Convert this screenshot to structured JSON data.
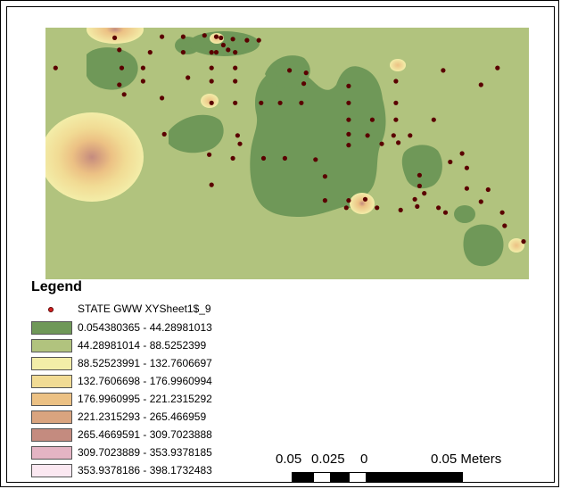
{
  "map": {
    "background_color": "#b1c37e",
    "low_color": "#6f9858",
    "point_color": "#5a0000",
    "points": [
      {
        "x": 0.01,
        "y": 0.145
      },
      {
        "x": 0.135,
        "y": 0.02
      },
      {
        "x": 0.145,
        "y": 0.07
      },
      {
        "x": 0.21,
        "y": 0.08
      },
      {
        "x": 0.235,
        "y": 0.015
      },
      {
        "x": 0.28,
        "y": 0.015
      },
      {
        "x": 0.325,
        "y": 0.01
      },
      {
        "x": 0.35,
        "y": 0.015
      },
      {
        "x": 0.36,
        "y": 0.02
      },
      {
        "x": 0.385,
        "y": 0.025
      },
      {
        "x": 0.415,
        "y": 0.03
      },
      {
        "x": 0.44,
        "y": 0.03
      },
      {
        "x": 0.15,
        "y": 0.145
      },
      {
        "x": 0.195,
        "y": 0.2
      },
      {
        "x": 0.29,
        "y": 0.185
      },
      {
        "x": 0.28,
        "y": 0.08
      },
      {
        "x": 0.34,
        "y": 0.08
      },
      {
        "x": 0.375,
        "y": 0.07
      },
      {
        "x": 0.365,
        "y": 0.05
      },
      {
        "x": 0.35,
        "y": 0.08
      },
      {
        "x": 0.39,
        "y": 0.08
      },
      {
        "x": 0.145,
        "y": 0.215
      },
      {
        "x": 0.155,
        "y": 0.255
      },
      {
        "x": 0.195,
        "y": 0.145
      },
      {
        "x": 0.235,
        "y": 0.27
      },
      {
        "x": 0.34,
        "y": 0.145
      },
      {
        "x": 0.39,
        "y": 0.145
      },
      {
        "x": 0.34,
        "y": 0.2
      },
      {
        "x": 0.39,
        "y": 0.2
      },
      {
        "x": 0.34,
        "y": 0.29
      },
      {
        "x": 0.39,
        "y": 0.29
      },
      {
        "x": 0.445,
        "y": 0.29
      },
      {
        "x": 0.485,
        "y": 0.29
      },
      {
        "x": 0.505,
        "y": 0.155
      },
      {
        "x": 0.54,
        "y": 0.165
      },
      {
        "x": 0.535,
        "y": 0.21
      },
      {
        "x": 0.53,
        "y": 0.29
      },
      {
        "x": 0.63,
        "y": 0.22
      },
      {
        "x": 0.63,
        "y": 0.29
      },
      {
        "x": 0.63,
        "y": 0.36
      },
      {
        "x": 0.68,
        "y": 0.36
      },
      {
        "x": 0.73,
        "y": 0.36
      },
      {
        "x": 0.73,
        "y": 0.29
      },
      {
        "x": 0.73,
        "y": 0.2
      },
      {
        "x": 0.725,
        "y": 0.425
      },
      {
        "x": 0.735,
        "y": 0.455
      },
      {
        "x": 0.76,
        "y": 0.425
      },
      {
        "x": 0.81,
        "y": 0.36
      },
      {
        "x": 0.83,
        "y": 0.155
      },
      {
        "x": 0.91,
        "y": 0.215
      },
      {
        "x": 0.945,
        "y": 0.145
      },
      {
        "x": 0.24,
        "y": 0.42
      },
      {
        "x": 0.335,
        "y": 0.505
      },
      {
        "x": 0.34,
        "y": 0.63
      },
      {
        "x": 0.385,
        "y": 0.52
      },
      {
        "x": 0.395,
        "y": 0.425
      },
      {
        "x": 0.4,
        "y": 0.46
      },
      {
        "x": 0.45,
        "y": 0.52
      },
      {
        "x": 0.495,
        "y": 0.52
      },
      {
        "x": 0.56,
        "y": 0.525
      },
      {
        "x": 0.58,
        "y": 0.595
      },
      {
        "x": 0.63,
        "y": 0.42
      },
      {
        "x": 0.63,
        "y": 0.465
      },
      {
        "x": 0.67,
        "y": 0.425
      },
      {
        "x": 0.7,
        "y": 0.46
      },
      {
        "x": 0.63,
        "y": 0.695
      },
      {
        "x": 0.58,
        "y": 0.695
      },
      {
        "x": 0.625,
        "y": 0.725
      },
      {
        "x": 0.665,
        "y": 0.69
      },
      {
        "x": 0.69,
        "y": 0.725
      },
      {
        "x": 0.74,
        "y": 0.735
      },
      {
        "x": 0.78,
        "y": 0.59
      },
      {
        "x": 0.79,
        "y": 0.665
      },
      {
        "x": 0.775,
        "y": 0.72
      },
      {
        "x": 0.82,
        "y": 0.725
      },
      {
        "x": 0.845,
        "y": 0.535
      },
      {
        "x": 0.87,
        "y": 0.5
      },
      {
        "x": 0.78,
        "y": 0.635
      },
      {
        "x": 0.77,
        "y": 0.69
      },
      {
        "x": 0.835,
        "y": 0.745
      },
      {
        "x": 0.88,
        "y": 0.645
      },
      {
        "x": 0.88,
        "y": 0.56
      },
      {
        "x": 0.91,
        "y": 0.7
      },
      {
        "x": 0.955,
        "y": 0.745
      },
      {
        "x": 0.96,
        "y": 0.8
      },
      {
        "x": 1.0,
        "y": 0.865
      },
      {
        "x": 0.925,
        "y": 0.65
      }
    ]
  },
  "legend": {
    "title": "Legend",
    "point_layer": "STATE GWW XYSheet1$_9",
    "classes": [
      {
        "label": "0.054380365 - 44.28981013",
        "color": "#6f9858"
      },
      {
        "label": "44.28981014 - 88.5252399",
        "color": "#b1c37e"
      },
      {
        "label": "88.52523991 - 132.7606697",
        "color": "#f3eda8"
      },
      {
        "label": "132.7606698 - 176.9960994",
        "color": "#f1db94"
      },
      {
        "label": "176.9960995 - 221.2315292",
        "color": "#ecc184"
      },
      {
        "label": "221.2315293 - 265.466959",
        "color": "#d9a47f"
      },
      {
        "label": "265.4669591 - 309.7023888",
        "color": "#c48b7f"
      },
      {
        "label": "309.7023889 - 353.9378185",
        "color": "#e4b4c4"
      },
      {
        "label": "353.9378186 - 398.1732483",
        "color": "#fbe8f1"
      }
    ]
  },
  "scalebar": {
    "labels": [
      "0.05",
      "0.025",
      "0",
      "0.05 Meters"
    ]
  }
}
